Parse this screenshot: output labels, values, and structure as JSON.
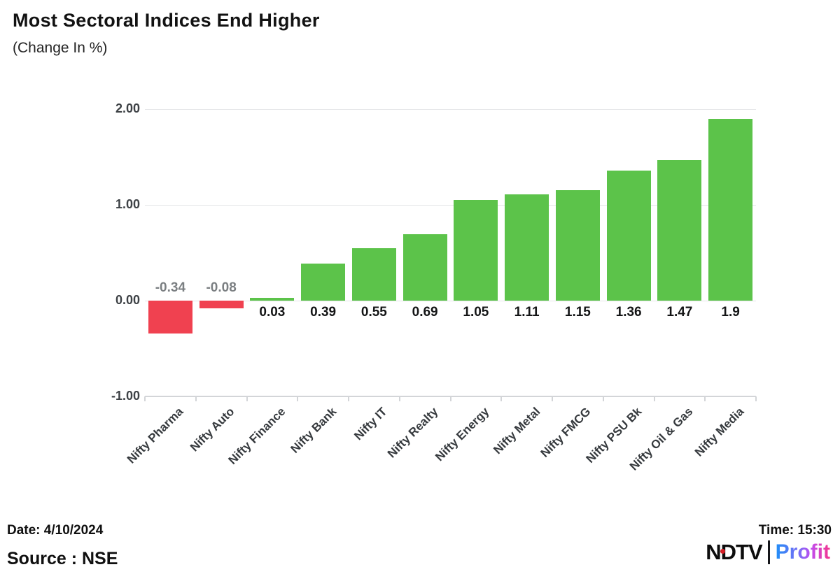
{
  "header": {
    "title": "Most Sectoral Indices End Higher",
    "subtitle": "(Change In %)"
  },
  "chart_data": {
    "type": "bar",
    "title": "Most Sectoral Indices End Higher",
    "subtitle": "(Change In %)",
    "categories": [
      "Nifty Pharma",
      "Nifty Auto",
      "Nifty Finance",
      "Nifty Bank",
      "Nifty IT",
      "Nifty Realty",
      "Nifty Energy",
      "Nifty Metal",
      "Nifty FMCG",
      "Nifty PSU Bk",
      "Nifty Oil & Gas",
      "Nifty Media"
    ],
    "values": [
      -0.34,
      -0.08,
      0.03,
      0.39,
      0.55,
      0.69,
      1.05,
      1.11,
      1.15,
      1.36,
      1.47,
      1.9
    ],
    "value_labels": [
      "-0.34",
      "-0.08",
      "0.03",
      "0.39",
      "0.55",
      "0.69",
      "1.05",
      "1.11",
      "1.15",
      "1.36",
      "1.47",
      "1.9"
    ],
    "xlabel": "",
    "ylabel": "",
    "ylim": [
      -1.0,
      2.0
    ],
    "yticks": [
      2.0,
      1.0,
      0.0,
      -1.0
    ],
    "ytick_labels": [
      "2.00",
      "1.00",
      "0.00",
      "-1.00"
    ],
    "grid": true,
    "legend": false,
    "colors": {
      "positive": "#5cc34a",
      "negative": "#f04150",
      "gridline": "#e4e5e7",
      "axis": "#d3d5d8",
      "value_label_positive": "#141516",
      "value_label_negative": "#7b7f82",
      "tick_label": "#3d4145"
    }
  },
  "footer": {
    "date_label": "Date: 4/10/2024",
    "time_label": "Time: 15:30",
    "source_label": "Source : NSE",
    "logo": {
      "ndtv_text": "NDTV",
      "profit_text": "Profit"
    }
  }
}
